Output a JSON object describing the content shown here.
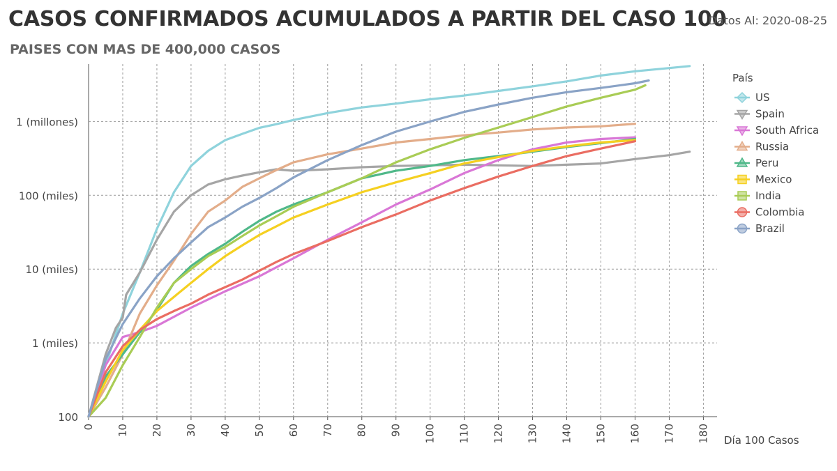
{
  "header": {
    "title": "CASOS CONFIRMADOS ACUMULADOS A PARTIR DEL CASO 100",
    "subtitle": "PAISES CON MAS DE 400,000 CASOS",
    "date_label": "Datos Al: 2020-08-25"
  },
  "chart_data": {
    "type": "line",
    "title": "CASOS CONFIRMADOS ACUMULADOS A PARTIR DEL CASO 100",
    "subtitle": "PAISES CON MAS DE 400,000 CASOS",
    "xlabel": "Día 100 Casos",
    "ylabel": "",
    "xlim": [
      0,
      184
    ],
    "ylim": [
      100,
      6000000
    ],
    "y_scale": "log",
    "grid": true,
    "legend_title": "País",
    "legend_position": "right",
    "x_ticks": [
      0,
      10,
      20,
      30,
      40,
      50,
      60,
      70,
      80,
      90,
      100,
      110,
      120,
      130,
      140,
      150,
      160,
      170,
      180
    ],
    "y_ticks": [
      {
        "value": 100,
        "label": "100"
      },
      {
        "value": 1000,
        "label": "1 (miles)"
      },
      {
        "value": 10000,
        "label": "10 (miles)"
      },
      {
        "value": 100000,
        "label": "100 (miles)"
      },
      {
        "value": 1000000,
        "label": "1 (millones)"
      }
    ],
    "series": [
      {
        "name": "US",
        "color": "#8fd3dc",
        "marker": "diamond",
        "points": [
          [
            0,
            100
          ],
          [
            5,
            500
          ],
          [
            10,
            2500
          ],
          [
            15,
            9000
          ],
          [
            20,
            35000
          ],
          [
            25,
            110000
          ],
          [
            30,
            250000
          ],
          [
            35,
            400000
          ],
          [
            40,
            560000
          ],
          [
            45,
            680000
          ],
          [
            50,
            820000
          ],
          [
            55,
            920000
          ],
          [
            60,
            1050000
          ],
          [
            70,
            1300000
          ],
          [
            80,
            1550000
          ],
          [
            90,
            1750000
          ],
          [
            100,
            2000000
          ],
          [
            110,
            2250000
          ],
          [
            120,
            2600000
          ],
          [
            130,
            3000000
          ],
          [
            140,
            3500000
          ],
          [
            150,
            4200000
          ],
          [
            160,
            4800000
          ],
          [
            170,
            5300000
          ],
          [
            176,
            5650000
          ]
        ]
      },
      {
        "name": "Spain",
        "color": "#a5a5a5",
        "marker": "triangle-down",
        "points": [
          [
            0,
            100
          ],
          [
            5,
            700
          ],
          [
            8,
            1600
          ],
          [
            10,
            2200
          ],
          [
            11,
            4500
          ],
          [
            15,
            9000
          ],
          [
            20,
            25000
          ],
          [
            25,
            60000
          ],
          [
            30,
            100000
          ],
          [
            35,
            140000
          ],
          [
            40,
            165000
          ],
          [
            45,
            185000
          ],
          [
            50,
            205000
          ],
          [
            55,
            225000
          ],
          [
            60,
            215000
          ],
          [
            70,
            225000
          ],
          [
            80,
            240000
          ],
          [
            90,
            250000
          ],
          [
            100,
            255000
          ],
          [
            110,
            260000
          ],
          [
            120,
            255000
          ],
          [
            130,
            250000
          ],
          [
            140,
            260000
          ],
          [
            150,
            270000
          ],
          [
            160,
            310000
          ],
          [
            170,
            350000
          ],
          [
            176,
            390000
          ]
        ]
      },
      {
        "name": "South Africa",
        "color": "#d977d6",
        "marker": "triangle-down",
        "points": [
          [
            0,
            100
          ],
          [
            5,
            500
          ],
          [
            10,
            1200
          ],
          [
            15,
            1400
          ],
          [
            20,
            1700
          ],
          [
            30,
            3000
          ],
          [
            40,
            5000
          ],
          [
            50,
            8000
          ],
          [
            60,
            14000
          ],
          [
            70,
            25000
          ],
          [
            80,
            43000
          ],
          [
            90,
            75000
          ],
          [
            100,
            120000
          ],
          [
            110,
            200000
          ],
          [
            120,
            300000
          ],
          [
            130,
            420000
          ],
          [
            140,
            520000
          ],
          [
            150,
            580000
          ],
          [
            160,
            610000
          ]
        ]
      },
      {
        "name": "Russia",
        "color": "#e3ad8a",
        "marker": "triangle",
        "points": [
          [
            0,
            100
          ],
          [
            5,
            250
          ],
          [
            10,
            700
          ],
          [
            15,
            2500
          ],
          [
            20,
            6000
          ],
          [
            25,
            13000
          ],
          [
            30,
            30000
          ],
          [
            35,
            60000
          ],
          [
            40,
            85000
          ],
          [
            45,
            130000
          ],
          [
            50,
            170000
          ],
          [
            55,
            220000
          ],
          [
            60,
            280000
          ],
          [
            70,
            360000
          ],
          [
            80,
            430000
          ],
          [
            90,
            520000
          ],
          [
            100,
            580000
          ],
          [
            110,
            650000
          ],
          [
            120,
            710000
          ],
          [
            130,
            780000
          ],
          [
            140,
            830000
          ],
          [
            150,
            860000
          ],
          [
            160,
            930000
          ]
        ]
      },
      {
        "name": "Peru",
        "color": "#4fb889",
        "marker": "triangle",
        "points": [
          [
            0,
            100
          ],
          [
            5,
            350
          ],
          [
            10,
            700
          ],
          [
            15,
            1400
          ],
          [
            20,
            2800
          ],
          [
            25,
            6500
          ],
          [
            30,
            11000
          ],
          [
            35,
            16000
          ],
          [
            40,
            22000
          ],
          [
            45,
            32000
          ],
          [
            50,
            45000
          ],
          [
            55,
            60000
          ],
          [
            60,
            75000
          ],
          [
            70,
            110000
          ],
          [
            80,
            170000
          ],
          [
            90,
            215000
          ],
          [
            100,
            250000
          ],
          [
            110,
            300000
          ],
          [
            120,
            340000
          ],
          [
            130,
            390000
          ],
          [
            140,
            450000
          ],
          [
            150,
            510000
          ],
          [
            160,
            580000
          ]
        ]
      },
      {
        "name": "Mexico",
        "color": "#f5d021",
        "marker": "square",
        "points": [
          [
            0,
            100
          ],
          [
            5,
            300
          ],
          [
            10,
            800
          ],
          [
            15,
            1500
          ],
          [
            20,
            2700
          ],
          [
            25,
            4200
          ],
          [
            30,
            6500
          ],
          [
            35,
            10000
          ],
          [
            40,
            15000
          ],
          [
            45,
            21000
          ],
          [
            50,
            29000
          ],
          [
            55,
            38000
          ],
          [
            60,
            50000
          ],
          [
            70,
            75000
          ],
          [
            80,
            110000
          ],
          [
            90,
            150000
          ],
          [
            100,
            200000
          ],
          [
            110,
            270000
          ],
          [
            120,
            330000
          ],
          [
            130,
            400000
          ],
          [
            140,
            460000
          ],
          [
            150,
            520000
          ],
          [
            160,
            560000
          ]
        ]
      },
      {
        "name": "India",
        "color": "#a9cc55",
        "marker": "square",
        "points": [
          [
            0,
            100
          ],
          [
            5,
            180
          ],
          [
            10,
            500
          ],
          [
            15,
            1200
          ],
          [
            20,
            3000
          ],
          [
            25,
            6500
          ],
          [
            30,
            10000
          ],
          [
            35,
            15000
          ],
          [
            40,
            20000
          ],
          [
            45,
            28000
          ],
          [
            50,
            39000
          ],
          [
            55,
            52000
          ],
          [
            60,
            70000
          ],
          [
            70,
            110000
          ],
          [
            80,
            170000
          ],
          [
            90,
            280000
          ],
          [
            100,
            420000
          ],
          [
            110,
            600000
          ],
          [
            120,
            830000
          ],
          [
            130,
            1150000
          ],
          [
            140,
            1600000
          ],
          [
            150,
            2100000
          ],
          [
            160,
            2700000
          ],
          [
            163,
            3100000
          ]
        ]
      },
      {
        "name": "Colombia",
        "color": "#ea6d62",
        "marker": "circle",
        "points": [
          [
            0,
            100
          ],
          [
            5,
            400
          ],
          [
            10,
            900
          ],
          [
            15,
            1500
          ],
          [
            20,
            2100
          ],
          [
            25,
            2700
          ],
          [
            30,
            3400
          ],
          [
            35,
            4500
          ],
          [
            40,
            5700
          ],
          [
            45,
            7200
          ],
          [
            50,
            9500
          ],
          [
            55,
            12500
          ],
          [
            60,
            16000
          ],
          [
            70,
            24000
          ],
          [
            80,
            37000
          ],
          [
            90,
            55000
          ],
          [
            100,
            85000
          ],
          [
            110,
            125000
          ],
          [
            120,
            180000
          ],
          [
            130,
            250000
          ],
          [
            140,
            340000
          ],
          [
            150,
            430000
          ],
          [
            160,
            540000
          ]
        ]
      },
      {
        "name": "Brazil",
        "color": "#8aa3c6",
        "marker": "circle",
        "points": [
          [
            0,
            100
          ],
          [
            5,
            600
          ],
          [
            10,
            1800
          ],
          [
            15,
            4000
          ],
          [
            20,
            8000
          ],
          [
            25,
            14000
          ],
          [
            30,
            23000
          ],
          [
            35,
            37000
          ],
          [
            40,
            50000
          ],
          [
            45,
            70000
          ],
          [
            50,
            92000
          ],
          [
            55,
            125000
          ],
          [
            60,
            175000
          ],
          [
            70,
            300000
          ],
          [
            80,
            480000
          ],
          [
            90,
            730000
          ],
          [
            100,
            1000000
          ],
          [
            110,
            1350000
          ],
          [
            120,
            1700000
          ],
          [
            130,
            2100000
          ],
          [
            140,
            2500000
          ],
          [
            150,
            2850000
          ],
          [
            160,
            3300000
          ],
          [
            164,
            3600000
          ]
        ]
      }
    ]
  }
}
